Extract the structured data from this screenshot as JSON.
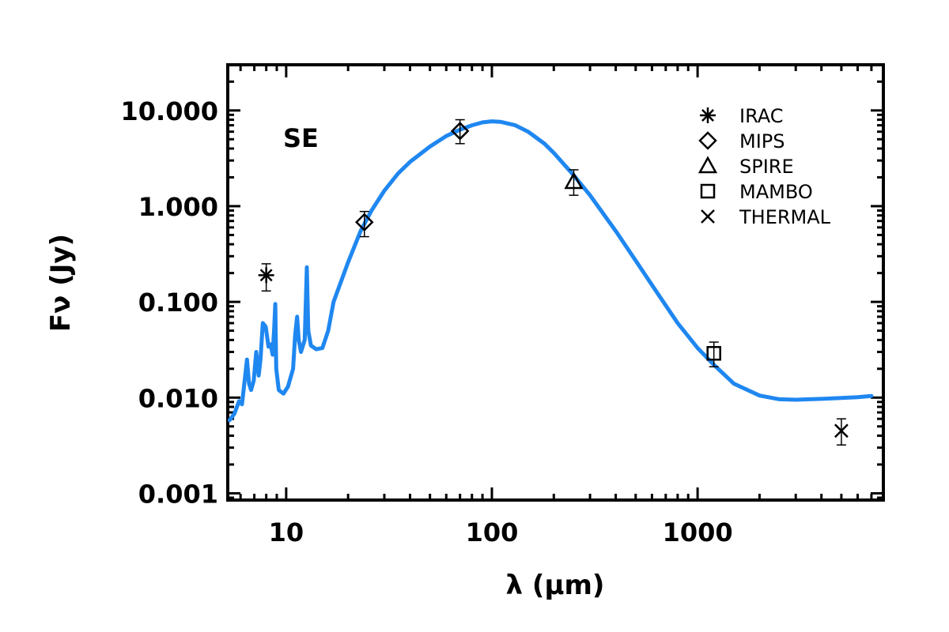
{
  "chart_data": {
    "type": "scatter",
    "panel_label": "SE",
    "xlabel": "λ (μm)",
    "ylabel": "Fν (Jy)",
    "x_scale": "log",
    "y_scale": "log",
    "xlim": [
      5.2,
      8000
    ],
    "ylim": [
      0.00085,
      30
    ],
    "x_ticks": [
      10,
      100,
      1000
    ],
    "x_tick_labels": [
      "10",
      "100",
      "1000"
    ],
    "y_ticks": [
      0.001,
      0.01,
      0.1,
      1,
      10
    ],
    "y_tick_labels": [
      "0.001",
      "0.010",
      "0.100",
      "1.000",
      "10.000"
    ],
    "grid": false,
    "legend_position": "top-right",
    "series": [
      {
        "name": "IRAC",
        "marker": "asterisk",
        "points": [
          {
            "x": 8.0,
            "y": 0.19,
            "ylo": 0.13,
            "yhi": 0.25
          }
        ]
      },
      {
        "name": "MIPS",
        "marker": "diamond",
        "points": [
          {
            "x": 24,
            "y": 0.68,
            "ylo": 0.48,
            "yhi": 0.88
          },
          {
            "x": 70,
            "y": 6.1,
            "ylo": 4.5,
            "yhi": 8.0
          }
        ]
      },
      {
        "name": "SPIRE",
        "marker": "triangle",
        "points": [
          {
            "x": 250,
            "y": 1.8,
            "ylo": 1.3,
            "yhi": 2.4
          }
        ]
      },
      {
        "name": "MAMBO",
        "marker": "square",
        "points": [
          {
            "x": 1200,
            "y": 0.029,
            "ylo": 0.021,
            "yhi": 0.038
          }
        ]
      },
      {
        "name": "THERMAL",
        "marker": "x",
        "points": [
          {
            "x": 5000,
            "y": 0.0045,
            "ylo": 0.0032,
            "yhi": 0.006
          }
        ]
      }
    ],
    "model_curve": {
      "color": "#1f87f0",
      "points": [
        [
          5.3,
          0.0058
        ],
        [
          5.6,
          0.0068
        ],
        [
          5.9,
          0.0092
        ],
        [
          6.1,
          0.0085
        ],
        [
          6.3,
          0.016
        ],
        [
          6.45,
          0.025
        ],
        [
          6.6,
          0.014
        ],
        [
          6.75,
          0.012
        ],
        [
          6.95,
          0.015
        ],
        [
          7.15,
          0.03
        ],
        [
          7.35,
          0.017
        ],
        [
          7.5,
          0.025
        ],
        [
          7.7,
          0.06
        ],
        [
          7.95,
          0.055
        ],
        [
          8.2,
          0.034
        ],
        [
          8.4,
          0.036
        ],
        [
          8.6,
          0.028
        ],
        [
          8.75,
          0.055
        ],
        [
          8.85,
          0.095
        ],
        [
          8.95,
          0.02
        ],
        [
          9.2,
          0.012
        ],
        [
          9.7,
          0.011
        ],
        [
          10.2,
          0.013
        ],
        [
          10.8,
          0.02
        ],
        [
          11.05,
          0.045
        ],
        [
          11.3,
          0.07
        ],
        [
          11.5,
          0.04
        ],
        [
          11.8,
          0.03
        ],
        [
          12.3,
          0.04
        ],
        [
          12.6,
          0.23
        ],
        [
          12.8,
          0.05
        ],
        [
          13.2,
          0.035
        ],
        [
          14.0,
          0.032
        ],
        [
          15.0,
          0.033
        ],
        [
          16.0,
          0.05
        ],
        [
          17.0,
          0.1
        ],
        [
          18.0,
          0.14
        ],
        [
          20,
          0.26
        ],
        [
          23,
          0.55
        ],
        [
          26,
          0.9
        ],
        [
          30,
          1.45
        ],
        [
          35,
          2.2
        ],
        [
          40,
          2.9
        ],
        [
          50,
          4.2
        ],
        [
          60,
          5.4
        ],
        [
          70,
          6.3
        ],
        [
          80,
          7.0
        ],
        [
          90,
          7.5
        ],
        [
          100,
          7.7
        ],
        [
          110,
          7.6
        ],
        [
          130,
          7.0
        ],
        [
          150,
          6.0
        ],
        [
          180,
          4.5
        ],
        [
          200,
          3.6
        ],
        [
          250,
          2.1
        ],
        [
          300,
          1.3
        ],
        [
          400,
          0.55
        ],
        [
          500,
          0.27
        ],
        [
          600,
          0.15
        ],
        [
          800,
          0.06
        ],
        [
          1000,
          0.033
        ],
        [
          1200,
          0.022
        ],
        [
          1500,
          0.014
        ],
        [
          2000,
          0.0105
        ],
        [
          2500,
          0.0096
        ],
        [
          3000,
          0.0095
        ],
        [
          4000,
          0.0097
        ],
        [
          5000,
          0.0099
        ],
        [
          6000,
          0.0101
        ],
        [
          7000,
          0.0104
        ]
      ]
    }
  }
}
